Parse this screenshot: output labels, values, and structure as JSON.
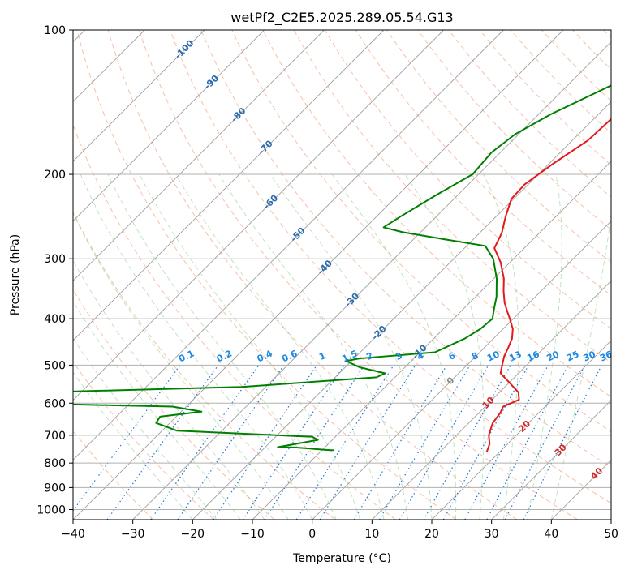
{
  "chart_data": {
    "type": "line",
    "subtype": "skew-t log-p diagram",
    "title": "wetPf2_C2E5.2025.289.05.54.G13",
    "xlabel": "Temperature (°C)",
    "ylabel": "Pressure (hPa)",
    "xlim": [
      -40,
      50
    ],
    "ylim": [
      1050,
      100
    ],
    "y_scale": "log",
    "x_ticks": [
      "−40",
      "−30",
      "−20",
      "−10",
      "0",
      "10",
      "20",
      "30",
      "40",
      "50"
    ],
    "x_tick_values": [
      -40,
      -30,
      -20,
      -10,
      0,
      10,
      20,
      30,
      40,
      50
    ],
    "y_ticks": [
      "100",
      "200",
      "300",
      "400",
      "500",
      "600",
      "700",
      "800",
      "900",
      "1000"
    ],
    "y_tick_values": [
      100,
      200,
      300,
      400,
      500,
      600,
      700,
      800,
      900,
      1000
    ],
    "grid": true,
    "legend": "none",
    "colors": {
      "temperature": "#e31a1c",
      "dewpoint": "#008000",
      "isotherm": "#9e9e9e",
      "dry_adiabat": "#f4a582",
      "moist_adiabat": "#4daf4a",
      "mixing_ratio": "#1f78d4",
      "iso_label_dark": "#2b6cb0",
      "iso_label_warm": "#d62728"
    },
    "series": [
      {
        "role": "temperature",
        "points": [
          [
            -13.2,
            100
          ],
          [
            -14.3,
            110
          ],
          [
            -13.4,
            120
          ],
          [
            -15.6,
            135
          ],
          [
            -17.0,
            150
          ],
          [
            -17.4,
            170
          ],
          [
            -19.3,
            190
          ],
          [
            -20.6,
            210
          ],
          [
            -20.4,
            225
          ],
          [
            -18.4,
            245
          ],
          [
            -16.3,
            265
          ],
          [
            -15.0,
            285
          ],
          [
            -11.6,
            305
          ],
          [
            -8.3,
            330
          ],
          [
            -6.3,
            350
          ],
          [
            -4.2,
            370
          ],
          [
            -2.4,
            385
          ],
          [
            -0.6,
            400
          ],
          [
            1.6,
            420
          ],
          [
            3.1,
            440
          ],
          [
            4.0,
            460
          ],
          [
            4.8,
            480
          ],
          [
            5.9,
            500
          ],
          [
            7.0,
            520
          ],
          [
            10.2,
            545
          ],
          [
            13.2,
            570
          ],
          [
            14.5,
            590
          ],
          [
            13.0,
            610
          ],
          [
            13.6,
            630
          ],
          [
            14.0,
            660
          ],
          [
            15.4,
            700
          ],
          [
            17.0,
            730
          ],
          [
            17.6,
            750
          ],
          [
            17.9,
            760
          ]
        ]
      },
      {
        "role": "dewpoint",
        "points": [
          [
            -13.5,
            100
          ],
          [
            -16.5,
            110
          ],
          [
            -19.5,
            120
          ],
          [
            -24.0,
            135
          ],
          [
            -28.0,
            150
          ],
          [
            -30.6,
            165
          ],
          [
            -31.5,
            180
          ],
          [
            -31.0,
            200
          ],
          [
            -33.5,
            220
          ],
          [
            -36.0,
            245
          ],
          [
            -37.0,
            258
          ],
          [
            -33.0,
            264
          ],
          [
            -25.0,
            273
          ],
          [
            -16.9,
            282
          ],
          [
            -13.4,
            300
          ],
          [
            -9.5,
            330
          ],
          [
            -6.5,
            360
          ],
          [
            -5.0,
            380
          ],
          [
            -3.5,
            400
          ],
          [
            -3.8,
            420
          ],
          [
            -4.8,
            440
          ],
          [
            -7.5,
            470
          ],
          [
            -19.0,
            484
          ],
          [
            -20.9,
            490
          ],
          [
            -17.6,
            505
          ],
          [
            -12.3,
            520
          ],
          [
            -13.1,
            530
          ],
          [
            -34.0,
            555
          ],
          [
            -67.6,
            570
          ],
          [
            -70.0,
            600
          ],
          [
            -42.3,
            610
          ],
          [
            -36.6,
            625
          ],
          [
            -42.7,
            640
          ],
          [
            -42.3,
            660
          ],
          [
            -37.5,
            685
          ],
          [
            -13.9,
            705
          ],
          [
            -12.4,
            716
          ],
          [
            -17.9,
            741
          ],
          [
            -15.0,
            742
          ],
          [
            -9.9,
            750
          ],
          [
            -8.5,
            752
          ],
          [
            -8.0,
            752
          ]
        ]
      }
    ],
    "isotherm_labels": [
      {
        "text": "-100",
        "value": -100
      },
      {
        "text": "-90",
        "value": -90
      },
      {
        "text": "-80",
        "value": -80
      },
      {
        "text": "-70",
        "value": -70
      },
      {
        "text": "-60",
        "value": -60
      },
      {
        "text": "-50",
        "value": -50
      },
      {
        "text": "-40",
        "value": -40
      },
      {
        "text": "-30",
        "value": -30
      },
      {
        "text": "-20",
        "value": -20
      },
      {
        "text": "-10",
        "value": -10
      },
      {
        "text": "0",
        "value": 0
      },
      {
        "text": "10",
        "value": 10
      },
      {
        "text": "20",
        "value": 20
      },
      {
        "text": "30",
        "value": 30
      },
      {
        "text": "40",
        "value": 40
      }
    ],
    "mixing_ratio_labels": [
      "0.1",
      "0.2",
      "0.4",
      "0.6",
      "1",
      "1.5",
      "2",
      "3",
      "4",
      "6",
      "8",
      "10",
      "13",
      "16",
      "20",
      "25",
      "30",
      "36"
    ],
    "mixing_ratio_values": [
      0.1,
      0.2,
      0.4,
      0.6,
      1,
      1.5,
      2,
      3,
      4,
      6,
      8,
      10,
      13,
      16,
      20,
      25,
      30,
      36
    ]
  }
}
